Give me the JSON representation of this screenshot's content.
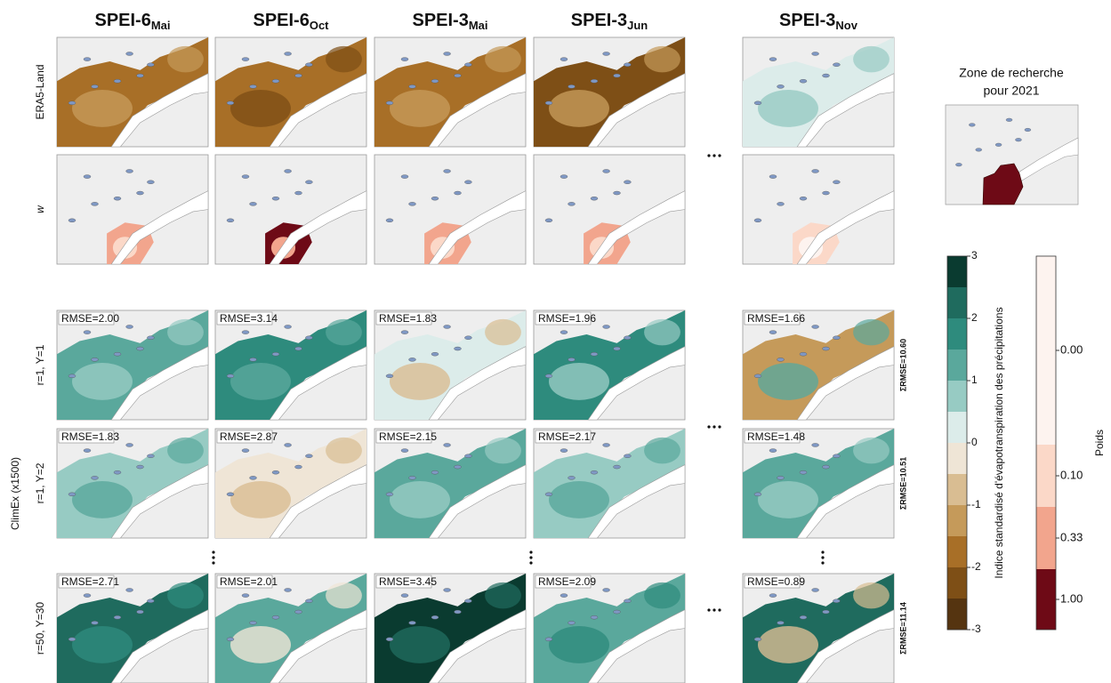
{
  "columns": [
    {
      "base": "SPEI-6",
      "sub": "Mai"
    },
    {
      "base": "SPEI-6",
      "sub": "Oct"
    },
    {
      "base": "SPEI-3",
      "sub": "Mai"
    },
    {
      "base": "SPEI-3",
      "sub": "Jun"
    },
    {
      "base": "SPEI-3",
      "sub": "Nov"
    }
  ],
  "row_labels": [
    "ERA5-Land",
    "w",
    "r=1, Y=1",
    "r=1, Y=2",
    "r=50, Y=30"
  ],
  "group_label": "ClimEx (x1500)",
  "rmse": [
    [
      "RMSE=2.00",
      "RMSE=3.14",
      "RMSE=1.83",
      "RMSE=1.96",
      "RMSE=1.66"
    ],
    [
      "RMSE=1.83",
      "RMSE=2.87",
      "RMSE=2.15",
      "RMSE=2.17",
      "RMSE=1.48"
    ],
    [
      "RMSE=2.71",
      "RMSE=2.01",
      "RMSE=3.45",
      "RMSE=2.09",
      "RMSE=0.89"
    ]
  ],
  "sum_rmse": [
    "ΣRMSE=10.60",
    "ΣRMSE=10.51",
    "ΣRMSE=11.14"
  ],
  "inset": {
    "title_lines": [
      "Zone de recherche",
      "pour 2021"
    ]
  },
  "spei_colorbar": {
    "label": "Indice standardisé d'évapotranspiration des précipitations",
    "ylim": [
      -3,
      3
    ],
    "yticks": [
      -3,
      -2,
      -1,
      0,
      1,
      2,
      3
    ],
    "colors": [
      "#0a3b30",
      "#1f6b5e",
      "#2e8b7d",
      "#5aa89c",
      "#97cbc3",
      "#dcecea",
      "#efe5d6",
      "#d9bd92",
      "#c59a5a",
      "#a86f27",
      "#7e4f16",
      "#553410"
    ]
  },
  "weight_colorbar": {
    "label": "Poids",
    "ticks": [
      {
        "value": 0,
        "label": "0.00"
      },
      {
        "value": 0.1,
        "label": "0.10"
      },
      {
        "value": 0.33,
        "label": "0.33"
      },
      {
        "value": 1,
        "label": "1.00"
      }
    ],
    "colors": [
      "#fdf3ef",
      "#fbd8c8",
      "#f2a58d",
      "#6e0a16"
    ]
  }
}
